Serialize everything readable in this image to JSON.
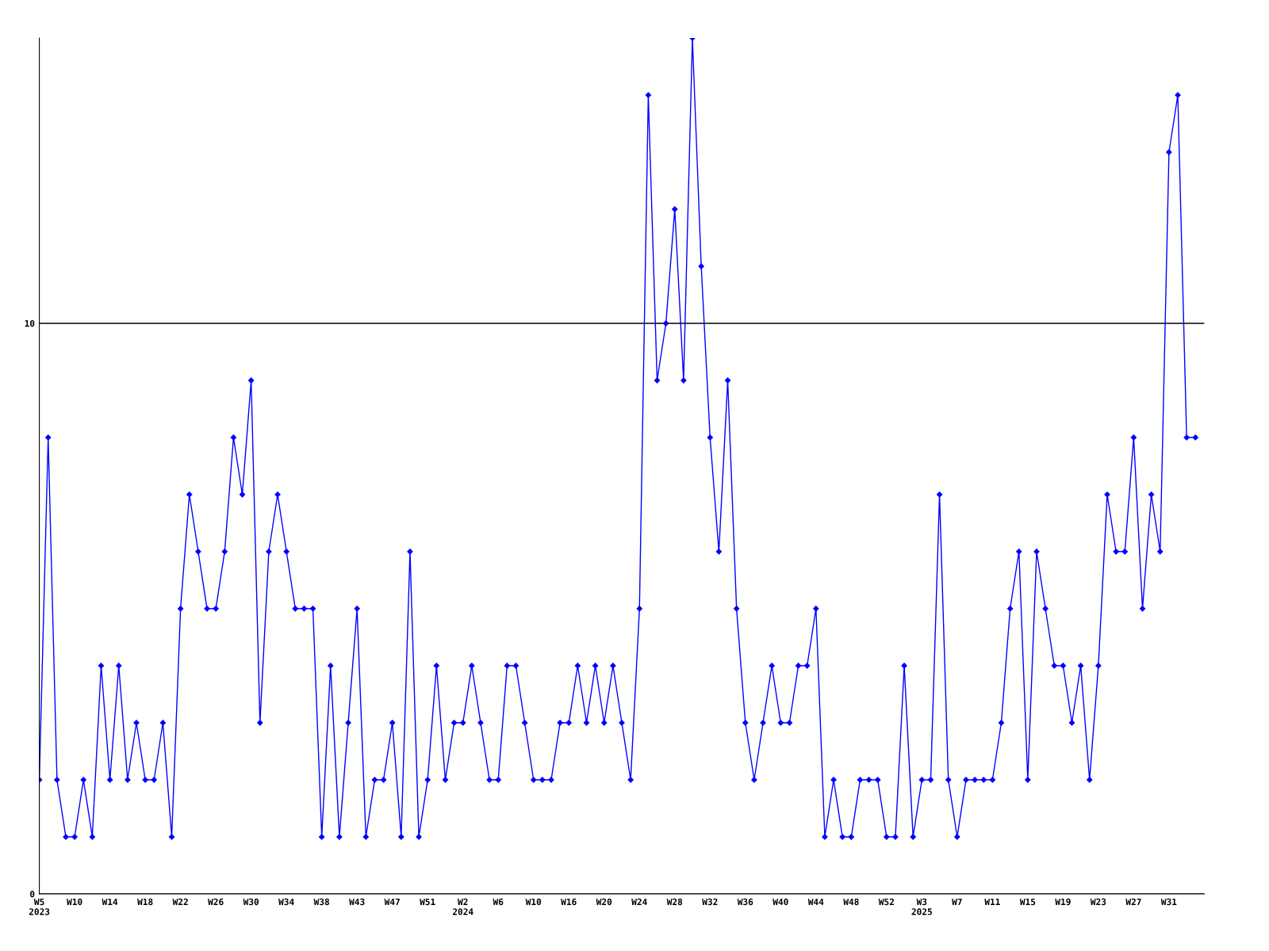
{
  "chart_data": {
    "type": "line",
    "categories": [
      "W5\n2023",
      null,
      null,
      null,
      "W10",
      null,
      null,
      null,
      "W14",
      null,
      null,
      null,
      "W18",
      null,
      null,
      null,
      "W22",
      null,
      null,
      null,
      "W26",
      null,
      null,
      null,
      "W30",
      null,
      null,
      null,
      "W34",
      null,
      null,
      null,
      "W38",
      null,
      null,
      null,
      "W43",
      null,
      null,
      null,
      "W47",
      null,
      null,
      null,
      "W51",
      null,
      null,
      null,
      "W2\n2024",
      null,
      null,
      null,
      "W6",
      null,
      null,
      null,
      "W10",
      null,
      null,
      null,
      "W16",
      null,
      null,
      null,
      "W20",
      null,
      null,
      null,
      "W24",
      null,
      null,
      null,
      "W28",
      null,
      null,
      null,
      "W32",
      null,
      null,
      null,
      "W36",
      null,
      null,
      null,
      "W40",
      null,
      null,
      null,
      "W44",
      null,
      null,
      null,
      "W48",
      null,
      null,
      null,
      "W52",
      null,
      null,
      null,
      "W3\n2025",
      null,
      null,
      null,
      "W7",
      null,
      null,
      null,
      "W11",
      null,
      null,
      null,
      "W15",
      null,
      null,
      null,
      "W19",
      null,
      null,
      null,
      "W23",
      null,
      null,
      null,
      "W27",
      null,
      null,
      null,
      "W31",
      null,
      null,
      null
    ],
    "series": [
      {
        "color": "#0000ff",
        "values": [
          2,
          8,
          2,
          1,
          1,
          2,
          1,
          4,
          2,
          4,
          2,
          3,
          2,
          2,
          3,
          1,
          5,
          7,
          6,
          5,
          5,
          6,
          8,
          7,
          9,
          3,
          6,
          7,
          6,
          5,
          5,
          5,
          1,
          4,
          1,
          3,
          5,
          1,
          2,
          2,
          3,
          1,
          6,
          1,
          2,
          4,
          2,
          3,
          3,
          4,
          3,
          2,
          2,
          4,
          4,
          3,
          2,
          2,
          2,
          3,
          3,
          4,
          3,
          4,
          3,
          4,
          3,
          2,
          5,
          14,
          9,
          10,
          12,
          9,
          15,
          11,
          8,
          6,
          9,
          5,
          3,
          2,
          3,
          4,
          3,
          3,
          4,
          4,
          5,
          1,
          2,
          1,
          1,
          2,
          2,
          2,
          1,
          1,
          4,
          1,
          2,
          2,
          7,
          2,
          1,
          2,
          2,
          2,
          2,
          3,
          5,
          6,
          2,
          6,
          5,
          4,
          4,
          3,
          4,
          2,
          4,
          7,
          6,
          6,
          8,
          5,
          7,
          6,
          13,
          14,
          8,
          8
        ]
      }
    ],
    "ylim": [
      0,
      15
    ],
    "yticks": [
      0,
      10
    ],
    "grid": "y",
    "marker": "diamond",
    "line_style": "solid"
  }
}
